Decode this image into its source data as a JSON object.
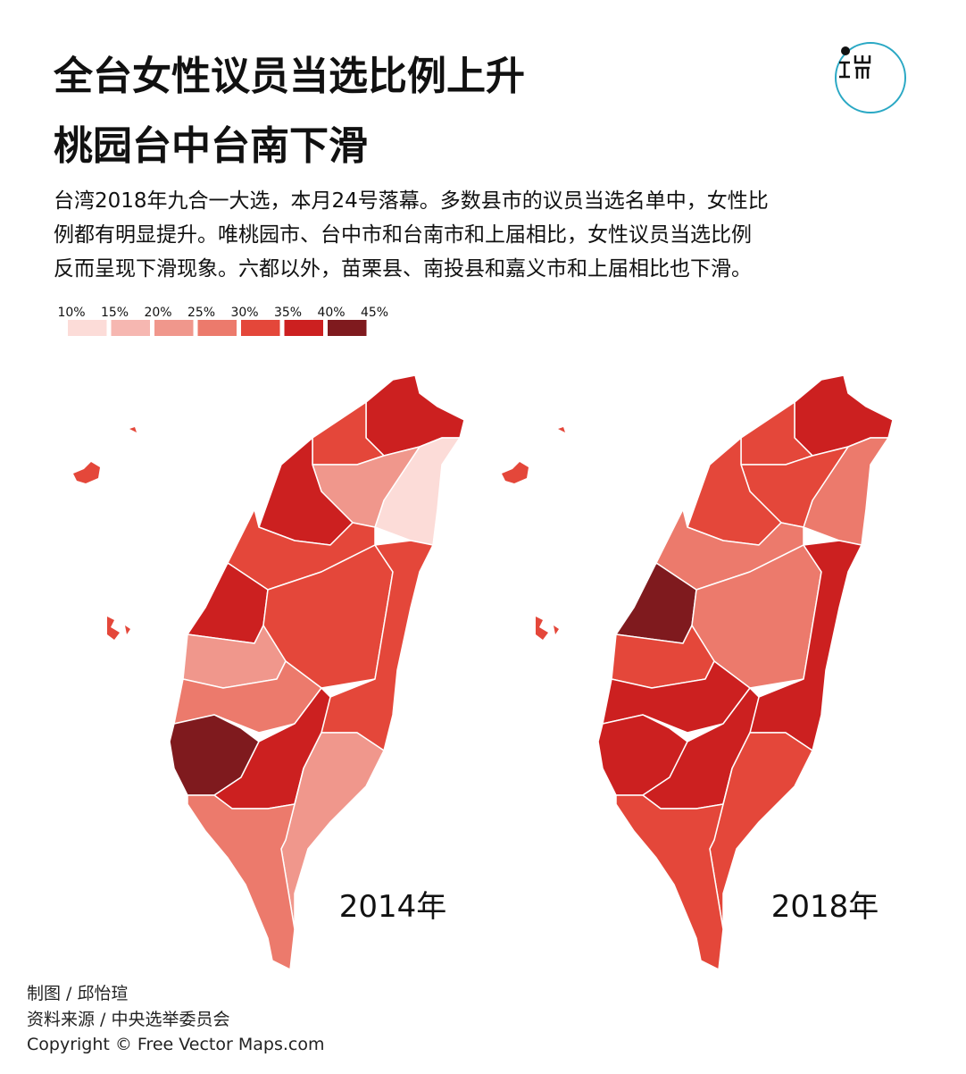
{
  "header": {
    "title": [
      "全台女性议员当选比例上升",
      "桃园台中台南下滑"
    ],
    "intro": [
      "台湾2018年九合一大选，本月24号落幕。多数县市的议员当选名单中，女性比",
      "例都有明显提升。唯桃园市、台中市和台南市和上届相比，女性议员当选比例",
      "反而呈现下滑现象。六都以外，苗栗县、南投县和嘉义市和上届相比也下滑。"
    ]
  },
  "legend": {
    "labels": [
      "10%",
      "15%",
      "20%",
      "25%",
      "30%",
      "35%",
      "40%",
      "45%"
    ],
    "colors": [
      "#fcdcd8",
      "#f6b7b1",
      "#f0978c",
      "#ec7a6c",
      "#e4473a",
      "#cc2020",
      "#7f1a1e"
    ]
  },
  "maps": [
    {
      "label": "2014年"
    },
    {
      "label": "2018年"
    }
  ],
  "footer": [
    "制图 / 邱怡瑄",
    "资料来源 / 中央选举委员会",
    "Copyright © Free Vector Maps.com"
  ]
}
